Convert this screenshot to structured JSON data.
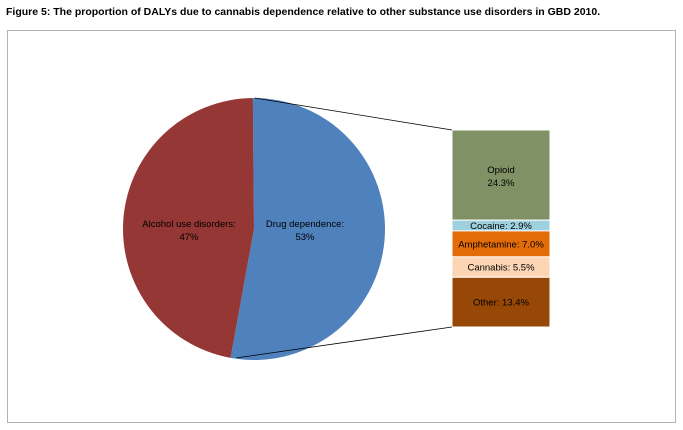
{
  "figure_title": "Figure 5: The proportion of DALYs due to cannabis dependence relative to other substance use disorders in GBD 2010.",
  "chart_data": {
    "type": "pie",
    "title": "",
    "pie": {
      "slices": [
        {
          "label": "Alcohol use disorders",
          "value": 47,
          "display": "47%",
          "color": "#953735"
        },
        {
          "label": "Drug dependence",
          "value": 53,
          "display": "53%",
          "color": "#4f81bd"
        }
      ]
    },
    "breakdown_of": "Drug dependence",
    "breakdown": [
      {
        "label": "Opioid",
        "value": 24.3,
        "display": "24.3%",
        "color": "#7f9165"
      },
      {
        "label": "Cocaine",
        "value": 2.9,
        "display": "2.9%",
        "color": "#9fd0dd"
      },
      {
        "label": "Amphetamine",
        "value": 7.0,
        "display": "7.0%",
        "color": "#e36c09"
      },
      {
        "label": "Cannabis",
        "value": 5.5,
        "display": "5.5%",
        "color": "#fcd5b5"
      },
      {
        "label": "Other",
        "value": 13.4,
        "display": "13.4%",
        "color": "#974806"
      }
    ]
  }
}
